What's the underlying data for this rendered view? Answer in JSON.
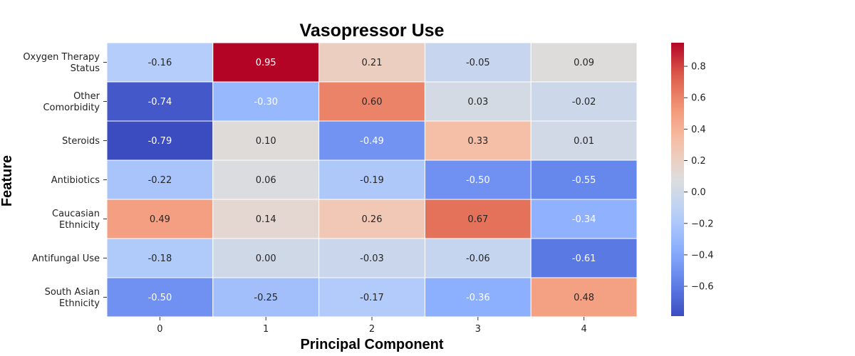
{
  "chart_data": {
    "type": "heatmap",
    "title": "Vasopressor Use",
    "xlabel": "Principal Component",
    "ylabel": "Feature",
    "x_categories": [
      "0",
      "1",
      "2",
      "3",
      "4"
    ],
    "y_categories": [
      [
        "Oxygen Therapy",
        "Status"
      ],
      [
        "Other",
        "Comorbidity"
      ],
      [
        "Steroids"
      ],
      [
        "Antibiotics"
      ],
      [
        "Caucasian",
        "Ethnicity"
      ],
      [
        "Antifungal Use"
      ],
      [
        "South Asian",
        "Ethnicity"
      ]
    ],
    "values": [
      [
        -0.16,
        0.95,
        0.21,
        -0.05,
        0.09
      ],
      [
        -0.74,
        -0.3,
        0.6,
        0.03,
        -0.02
      ],
      [
        -0.79,
        0.1,
        -0.49,
        0.33,
        0.01
      ],
      [
        -0.22,
        0.06,
        -0.19,
        -0.5,
        -0.55
      ],
      [
        0.49,
        0.14,
        0.26,
        0.67,
        -0.34
      ],
      [
        -0.18,
        0.0,
        -0.03,
        -0.06,
        -0.61
      ],
      [
        -0.5,
        -0.25,
        -0.17,
        -0.36,
        0.48
      ]
    ],
    "colormap": "coolwarm",
    "vmin": -0.79,
    "vmax": 0.95,
    "colorbar_ticks": [
      "0.8",
      "0.6",
      "0.4",
      "0.2",
      "0.0",
      "−0.2",
      "−0.4",
      "−0.6"
    ],
    "colorbar_tick_values": [
      0.8,
      0.6,
      0.4,
      0.2,
      0.0,
      -0.2,
      -0.4,
      -0.6
    ],
    "value_format": "2 decimals"
  }
}
